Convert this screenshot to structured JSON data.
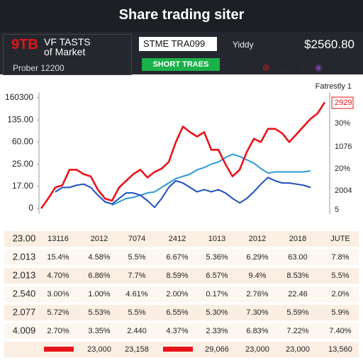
{
  "header": {
    "title": "Share trading siter"
  },
  "panel": {
    "badge": "9TB",
    "name": "VF TASTS of Market",
    "sub": "Prober 12200",
    "ticker": "STME TRA099",
    "mode": "Yiddy",
    "button": "SHORT TRAES",
    "price": "$2560.80",
    "tool_a": "TYPQS",
    "tool_b": "Adust"
  },
  "chart_data": {
    "type": "line",
    "x": [
      0,
      10,
      20,
      30,
      40,
      50,
      60,
      70,
      80,
      90,
      100,
      110,
      120,
      130,
      140,
      150,
      160,
      170,
      180,
      190,
      200,
      210,
      220,
      230,
      240,
      250,
      260,
      270,
      280,
      290,
      300,
      310,
      320,
      330,
      340,
      350,
      360,
      370,
      380,
      390,
      400
    ],
    "xlim": [
      0,
      400
    ],
    "ylim": [
      0,
      100
    ],
    "yticks": [
      0,
      {
        "value": 20,
        "label": "17.00"
      },
      {
        "value": 40,
        "label": "25.00"
      },
      {
        "value": 60,
        "label": "60.00"
      },
      {
        "value": 80,
        "label": "135.00"
      },
      {
        "value": 100,
        "label": "160300"
      }
    ],
    "grid": false,
    "y2label": "Fatrestly 1",
    "y2_texts": [
      "2929",
      "30%",
      "1076",
      "20%",
      "2004",
      "5"
    ],
    "series": [
      {
        "color": "#e8141a",
        "values": [
          0,
          9,
          19,
          21,
          35,
          35,
          31,
          29,
          17,
          9,
          7,
          19,
          25,
          31,
          35,
          28,
          33,
          36,
          42,
          60,
          74,
          69,
          65,
          69,
          53,
          53,
          40,
          29,
          35,
          51,
          63,
          60,
          72,
          72,
          68,
          60,
          67,
          74,
          81,
          86,
          96
        ]
      },
      {
        "color": "#1f4fbf",
        "values": [
          null,
          null,
          15,
          19,
          19,
          21,
          22,
          19,
          12,
          6,
          4,
          9,
          14,
          14,
          12,
          7,
          1,
          9,
          19,
          25,
          23,
          19,
          15,
          17,
          15,
          17,
          14,
          9,
          5,
          9,
          15,
          22,
          28,
          25,
          23,
          23,
          22,
          21,
          19,
          null,
          null
        ]
      },
      {
        "color": "#2b9ad6",
        "values": [
          null,
          null,
          null,
          null,
          null,
          null,
          null,
          null,
          null,
          null,
          3,
          6,
          9,
          10,
          12,
          14,
          15,
          19,
          23,
          27,
          29,
          31,
          35,
          37,
          40,
          42,
          46,
          49,
          47,
          44,
          41,
          36,
          32,
          33,
          33,
          33,
          33,
          33,
          34,
          null,
          null
        ]
      }
    ]
  },
  "table": {
    "rows": [
      [
        "23.00",
        "13116",
        "2012",
        "7074",
        "2412",
        "1013",
        "2012",
        "2018",
        "JUTE"
      ],
      [
        "2.013",
        "15.4%",
        "4.58%",
        "5.5%",
        "6.67%",
        "5.36%",
        "6.29%",
        "63.00",
        "7.8%"
      ],
      [
        "2.013",
        "4.70%",
        "6.86%",
        "7.7%",
        "8.59%",
        "6.57%",
        "9.4%",
        "8.53%",
        "5.5%"
      ],
      [
        "2.540",
        "3.00%",
        "1.00%",
        "4.61%",
        "2.00%",
        "0.17%",
        "2.76%",
        "22.46",
        "2.0%"
      ],
      [
        "2.077",
        "5.72%",
        "5.53%",
        "5.5%",
        "6.55%",
        "5.30%",
        "7.30%",
        "5.59%",
        "5.9%"
      ],
      [
        "4.009",
        "2.70%",
        "3.35%",
        "2.440",
        "4.37%",
        "2.33%",
        "6.83%",
        "7.22%",
        "7.40%"
      ],
      [
        null,
        null,
        "23,000",
        "23,158",
        null,
        "29,066",
        "23,000",
        "23,000",
        "13,560"
      ]
    ]
  }
}
